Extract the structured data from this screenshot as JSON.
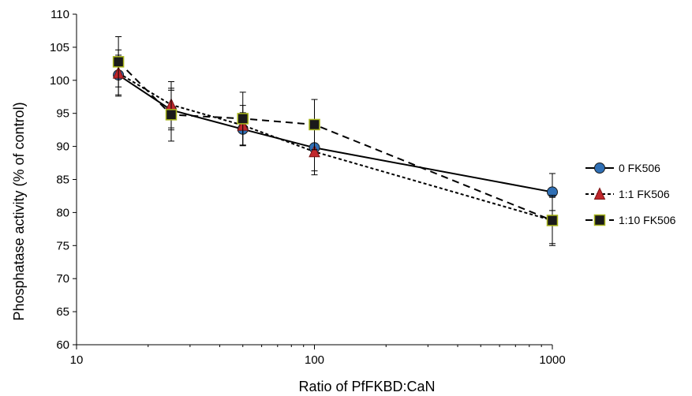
{
  "chart_data": {
    "type": "line",
    "title": "",
    "xlabel": "Ratio of PfFKBD:CaN",
    "ylabel": "Phosphatase activity (% of control)",
    "xscale": "log",
    "xlim": [
      10,
      1000
    ],
    "ylim": [
      60,
      110
    ],
    "x_ticks": [
      10,
      100,
      1000
    ],
    "x_tick_labels": [
      "10",
      "100",
      "1000"
    ],
    "y_ticks": [
      60,
      65,
      70,
      75,
      80,
      85,
      90,
      95,
      100,
      105,
      110
    ],
    "y_tick_labels": [
      "60",
      "65",
      "70",
      "75",
      "80",
      "85",
      "90",
      "95",
      "100",
      "105",
      "110"
    ],
    "grid": false,
    "legend_position": "right",
    "x": [
      15,
      25,
      50,
      100,
      1000
    ],
    "series": [
      {
        "name": "0 FK506",
        "values": [
          100.8,
          95.5,
          92.6,
          89.8,
          83.1
        ],
        "error": [
          3.0,
          3.0,
          2.5,
          3.5,
          2.8
        ],
        "marker": "circle",
        "line_style": "solid",
        "marker_color": "#2f6fb5",
        "line_color": "#000000"
      },
      {
        "name": "1:1 FK506",
        "values": [
          101.1,
          96.3,
          93.2,
          89.2,
          78.8
        ],
        "error": [
          3.5,
          3.5,
          3.0,
          3.5,
          3.5
        ],
        "marker": "triangle",
        "line_style": "dotted",
        "marker_color": "#c0282d",
        "line_color": "#000000"
      },
      {
        "name": "1:10 FK506",
        "values": [
          102.8,
          94.8,
          94.2,
          93.3,
          78.8
        ],
        "error": [
          3.8,
          4.0,
          4.0,
          3.8,
          3.8
        ],
        "marker": "square",
        "line_style": "dashed",
        "marker_color": "#1a1a1a",
        "marker_border": "#a8b51a",
        "line_color": "#000000"
      }
    ]
  }
}
